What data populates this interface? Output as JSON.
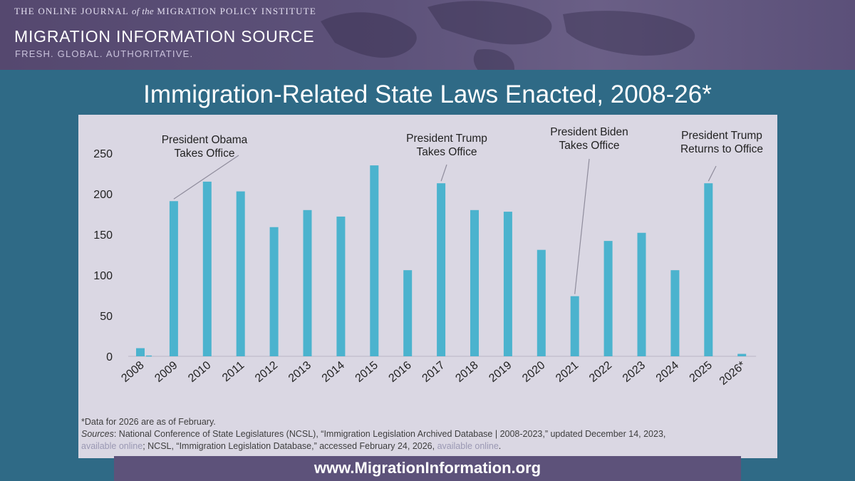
{
  "header": {
    "journal_prefix": "THE ONLINE JOURNAL ",
    "journal_of_the": "of the",
    "journal_suffix": " MIGRATION POLICY INSTITUTE",
    "brand_title": "MIGRATION INFORMATION SOURCE",
    "tagline": "FRESH. GLOBAL. AUTHORITATIVE."
  },
  "footer": {
    "url": "www.MigrationInformation.org"
  },
  "colors": {
    "bar": "#4bb3ce",
    "banner": "#5d527a",
    "background": "#2f6a86",
    "panel": "#dad7e3"
  },
  "chart_data": {
    "type": "bar",
    "title": "Immigration-Related State Laws Enacted, 2008-26*",
    "xlabel": "",
    "ylabel": "",
    "ylim": [
      0,
      250
    ],
    "yticks": [
      0,
      50,
      100,
      150,
      200,
      250
    ],
    "grid": false,
    "categories": [
      "2008",
      "2009",
      "2010",
      "2011",
      "2012",
      "2013",
      "2014",
      "2015",
      "2016",
      "2017",
      "2018",
      "2019",
      "2020",
      "2021",
      "2022",
      "2023",
      "2024",
      "2025",
      "2026*"
    ],
    "values": [
      10,
      191,
      215,
      203,
      159,
      180,
      172,
      235,
      106,
      213,
      180,
      178,
      131,
      74,
      142,
      152,
      106,
      213,
      3
    ],
    "secondary_values": [
      1,
      null,
      null,
      null,
      null,
      null,
      null,
      null,
      null,
      null,
      null,
      null,
      null,
      null,
      null,
      null,
      null,
      null,
      null
    ],
    "annotations": [
      {
        "category": "2009",
        "lines": [
          "President Obama",
          "Takes Office"
        ]
      },
      {
        "category": "2017",
        "lines": [
          "President Trump",
          "Takes Office"
        ]
      },
      {
        "category": "2021",
        "lines": [
          "President Biden",
          "Takes Office"
        ]
      },
      {
        "category": "2025",
        "lines": [
          "President Trump",
          "Returns to Office"
        ]
      }
    ],
    "notes": {
      "footnote": "*Data for 2026 are as of February.",
      "sources_label": "Sources",
      "sources_text_1": ": National Conference of State Legislatures (NCSL), “Immigration Legislation Archived Database | 2008-2023,” updated December 14, 2023,",
      "link_1": "available online",
      "sources_text_2": "; NCSL, “Immigration Legislation Database,” accessed February 24, 2026, ",
      "link_2": "available online",
      "sources_end": "."
    }
  }
}
